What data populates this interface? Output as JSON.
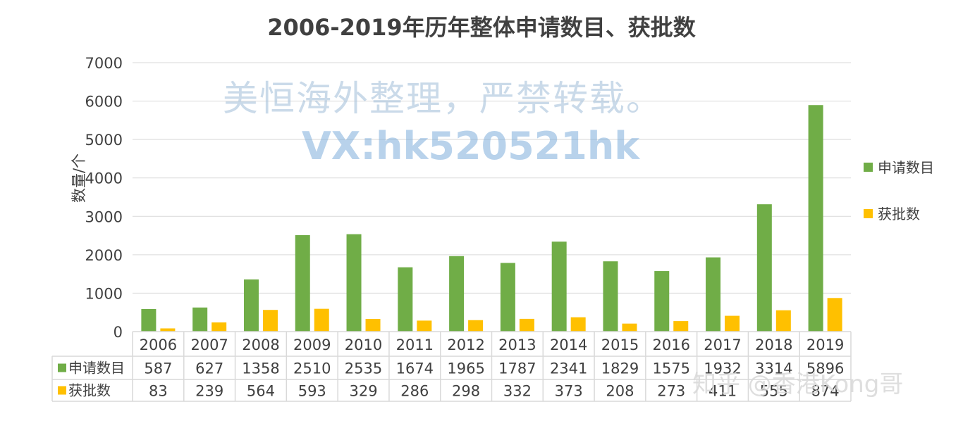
{
  "chart_data": {
    "type": "bar",
    "title": "2006-2019年历年整体申请数目、获批数",
    "ylabel": "数量/个",
    "xlabel": "",
    "ylim": [
      0,
      7000
    ],
    "yticks": [
      "0",
      "1000",
      "2000",
      "3000",
      "4000",
      "5000",
      "6000",
      "7000"
    ],
    "grid": true,
    "legend_position": "right",
    "categories": [
      "2006",
      "2007",
      "2008",
      "2009",
      "2010",
      "2011",
      "2012",
      "2013",
      "2014",
      "2015",
      "2016",
      "2017",
      "2018",
      "2019"
    ],
    "series": [
      {
        "name": "申请数目",
        "color": "#70ad47",
        "values": [
          587,
          627,
          1358,
          2510,
          2535,
          1674,
          1965,
          1787,
          2341,
          1829,
          1575,
          1932,
          3314,
          5896
        ],
        "labels": [
          "587",
          "627",
          "1358",
          "2510",
          "2535",
          "1674",
          "1965",
          "1787",
          "2341",
          "1829",
          "1575",
          "1932",
          "3314",
          "5896"
        ]
      },
      {
        "name": "获批数",
        "color": "#ffc000",
        "values": [
          83,
          239,
          564,
          593,
          329,
          286,
          298,
          332,
          373,
          208,
          273,
          411,
          555,
          874
        ],
        "labels": [
          "83",
          "239",
          "564",
          "593",
          "329",
          "286",
          "298",
          "332",
          "373",
          "208",
          "273",
          "411",
          "555",
          "874"
        ]
      }
    ],
    "data_table": true
  },
  "watermarks": {
    "line1": "美恒海外整理，严禁转载。",
    "line2": "VX:hk520521hk",
    "line3": "知乎 @香港Kong哥"
  },
  "colors": {
    "text": "#404040",
    "grid": "#d9d9d9"
  }
}
